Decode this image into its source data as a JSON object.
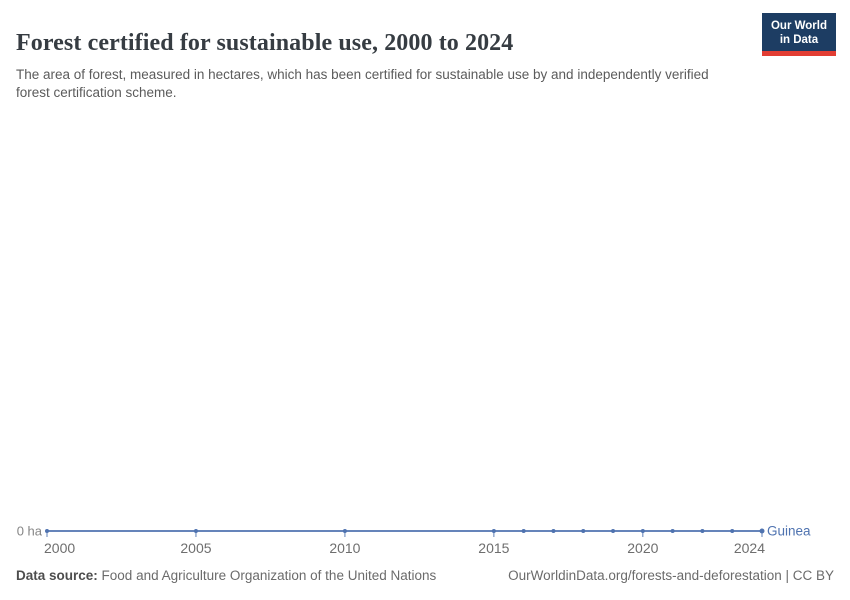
{
  "header": {
    "title": "Forest certified for sustainable use, 2000 to 2024",
    "subtitle": "The area of forest, measured in hectares, which has been certified for sustainable use by and independently verified forest certification scheme."
  },
  "logo": {
    "line1": "Our World",
    "line2": "in Data",
    "bg_color": "#1d3d63",
    "accent_color": "#e23d33"
  },
  "footer": {
    "source_label": "Data source:",
    "source_value": "Food and Agriculture Organization of the United Nations",
    "credit": "OurWorldinData.org/forests-and-deforestation | CC BY"
  },
  "chart_data": {
    "type": "line",
    "title": "Forest certified for sustainable use, 2000 to 2024",
    "unit": "ha",
    "x": [
      2000,
      2005,
      2010,
      2015,
      2016,
      2017,
      2018,
      2019,
      2020,
      2021,
      2022,
      2023,
      2024
    ],
    "series": [
      {
        "name": "Guinea",
        "color": "#4f73b0",
        "values": [
          0,
          0,
          0,
          0,
          0,
          0,
          0,
          0,
          0,
          0,
          0,
          0,
          0
        ]
      }
    ],
    "x_ticks": [
      2000,
      2005,
      2010,
      2015,
      2020,
      2024
    ],
    "xlim": [
      2000,
      2024
    ],
    "ylim": [
      0,
      0
    ],
    "y_zero_label": "0 ha",
    "axis_text_color": "#6e6e6e",
    "zero_label_color": "#858585",
    "grid": false,
    "legend": "inline-end-label"
  }
}
